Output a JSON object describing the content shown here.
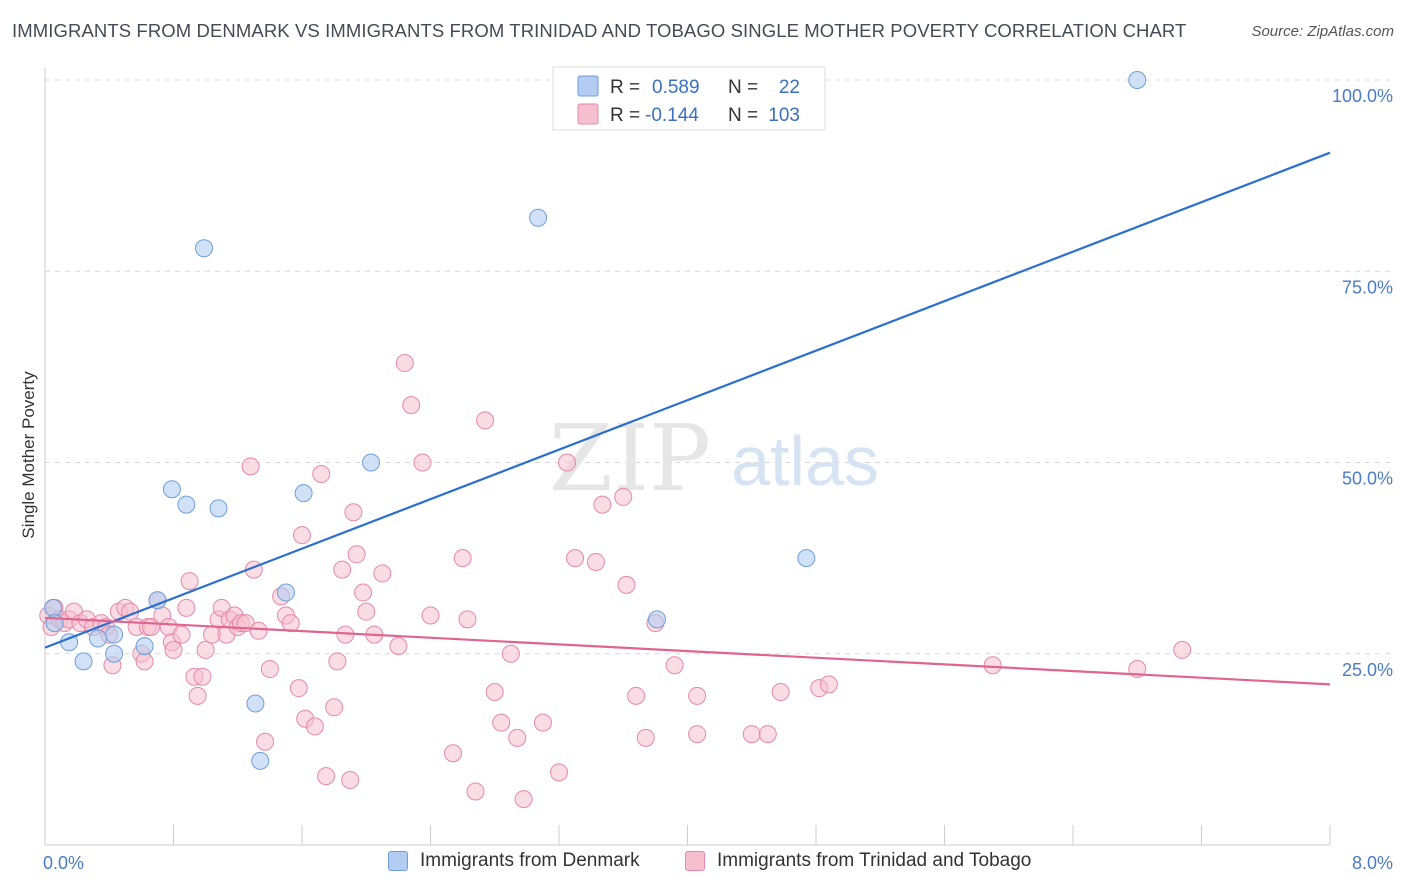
{
  "header": {
    "title": "IMMIGRANTS FROM DENMARK VS IMMIGRANTS FROM TRINIDAD AND TOBAGO SINGLE MOTHER POVERTY CORRELATION CHART",
    "source": "Source: ZipAtlas.com"
  },
  "watermark": {
    "zip": "ZIP",
    "atlas": "atlas"
  },
  "colors": {
    "blue_fill": "#b3cdf2",
    "blue_stroke": "#6f9fd8",
    "blue_line": "#2a6fce",
    "pink_fill": "#f6bfd0",
    "pink_stroke": "#e48aa8",
    "pink_line": "#e0648e",
    "axis_text_blue": "#4a7cc7",
    "grid": "#d9d9d9"
  },
  "stats_legend": {
    "rows": [
      {
        "r_label": "R =",
        "r_value": "0.589",
        "n_label": "N =",
        "n_value": "22",
        "series": "blue"
      },
      {
        "r_label": "R =",
        "r_value": "-0.144",
        "n_label": "N =",
        "n_value": "103",
        "series": "pink"
      }
    ]
  },
  "bottom_legend": {
    "items": [
      {
        "label": "Immigrants from Denmark",
        "series": "blue"
      },
      {
        "label": "Immigrants from Trinidad and Tobago",
        "series": "pink"
      }
    ]
  },
  "chart_data": {
    "type": "scatter",
    "title": "IMMIGRANTS FROM DENMARK VS IMMIGRANTS FROM TRINIDAD AND TOBAGO SINGLE MOTHER POVERTY CORRELATION CHART",
    "xlabel": "",
    "ylabel": "Single Mother Poverty",
    "xlim": [
      0,
      8
    ],
    "ylim": [
      0,
      100
    ],
    "x_tick_labels": [
      "0.0%",
      "8.0%"
    ],
    "y_tick_labels": [
      "25.0%",
      "50.0%",
      "75.0%",
      "100.0%"
    ],
    "y_ticks": [
      25,
      50,
      75,
      100
    ],
    "grid": true,
    "legend_position": "top-center",
    "series": [
      {
        "name": "Immigrants from Denmark",
        "color": "#6f9fd8",
        "points": [
          [
            0.05,
            31
          ],
          [
            0.06,
            29
          ],
          [
            0.15,
            26.5
          ],
          [
            0.24,
            24
          ],
          [
            0.33,
            27
          ],
          [
            0.43,
            27.5
          ],
          [
            0.43,
            25
          ],
          [
            0.62,
            26
          ],
          [
            0.7,
            32
          ],
          [
            0.79,
            46.5
          ],
          [
            0.88,
            44.5
          ],
          [
            0.99,
            78
          ],
          [
            1.08,
            44
          ],
          [
            1.31,
            18.5
          ],
          [
            1.34,
            11
          ],
          [
            1.5,
            33
          ],
          [
            1.61,
            46
          ],
          [
            2.03,
            50
          ],
          [
            3.07,
            82
          ],
          [
            3.81,
            29.5
          ],
          [
            4.74,
            37.5
          ],
          [
            6.8,
            100
          ]
        ],
        "trendline": {
          "x": [
            0,
            8
          ],
          "y": [
            25.8,
            90.5
          ]
        }
      },
      {
        "name": "Immigrants from Trinidad and Tobago",
        "color": "#e48aa8",
        "points": [
          [
            0.02,
            30
          ],
          [
            0.04,
            28.5
          ],
          [
            0.06,
            31
          ],
          [
            0.09,
            29.5
          ],
          [
            0.12,
            29
          ],
          [
            0.15,
            29.5
          ],
          [
            0.18,
            30.5
          ],
          [
            0.22,
            29
          ],
          [
            0.26,
            29.5
          ],
          [
            0.3,
            28.5
          ],
          [
            0.35,
            29
          ],
          [
            0.38,
            28.5
          ],
          [
            0.4,
            27.5
          ],
          [
            0.42,
            23.5
          ],
          [
            0.46,
            30.5
          ],
          [
            0.5,
            31
          ],
          [
            0.53,
            30.5
          ],
          [
            0.57,
            28.5
          ],
          [
            0.6,
            25
          ],
          [
            0.62,
            24
          ],
          [
            0.64,
            28.5
          ],
          [
            0.66,
            28.5
          ],
          [
            0.7,
            32
          ],
          [
            0.73,
            30
          ],
          [
            0.77,
            28.5
          ],
          [
            0.79,
            26.5
          ],
          [
            0.8,
            25.5
          ],
          [
            0.85,
            27.5
          ],
          [
            0.88,
            31
          ],
          [
            0.9,
            34.5
          ],
          [
            0.93,
            22
          ],
          [
            0.95,
            19.5
          ],
          [
            0.98,
            22
          ],
          [
            1.0,
            25.5
          ],
          [
            1.04,
            27.5
          ],
          [
            1.08,
            29.5
          ],
          [
            1.1,
            31
          ],
          [
            1.13,
            27.5
          ],
          [
            1.15,
            29.5
          ],
          [
            1.18,
            30
          ],
          [
            1.2,
            28.5
          ],
          [
            1.22,
            29
          ],
          [
            1.25,
            29
          ],
          [
            1.28,
            49.5
          ],
          [
            1.3,
            36
          ],
          [
            1.33,
            28
          ],
          [
            1.37,
            13.5
          ],
          [
            1.4,
            23
          ],
          [
            1.47,
            32.5
          ],
          [
            1.5,
            30
          ],
          [
            1.53,
            29
          ],
          [
            1.58,
            20.5
          ],
          [
            1.6,
            40.5
          ],
          [
            1.62,
            16.5
          ],
          [
            1.68,
            15.5
          ],
          [
            1.72,
            48.5
          ],
          [
            1.75,
            9
          ],
          [
            1.8,
            18
          ],
          [
            1.82,
            24
          ],
          [
            1.85,
            36
          ],
          [
            1.87,
            27.5
          ],
          [
            1.9,
            8.5
          ],
          [
            1.92,
            43.5
          ],
          [
            1.94,
            38
          ],
          [
            1.98,
            33
          ],
          [
            2.0,
            30.5
          ],
          [
            2.05,
            27.5
          ],
          [
            2.1,
            35.5
          ],
          [
            2.2,
            26
          ],
          [
            2.24,
            63
          ],
          [
            2.28,
            57.5
          ],
          [
            2.35,
            50
          ],
          [
            2.4,
            30
          ],
          [
            2.54,
            12
          ],
          [
            2.6,
            37.5
          ],
          [
            2.63,
            29.5
          ],
          [
            2.68,
            7
          ],
          [
            2.74,
            55.5
          ],
          [
            2.8,
            20
          ],
          [
            2.84,
            16
          ],
          [
            2.9,
            25
          ],
          [
            2.94,
            14
          ],
          [
            2.98,
            6
          ],
          [
            3.1,
            16
          ],
          [
            3.2,
            9.5
          ],
          [
            3.25,
            50
          ],
          [
            3.3,
            37.5
          ],
          [
            3.43,
            37
          ],
          [
            3.47,
            44.5
          ],
          [
            3.6,
            45.5
          ],
          [
            3.62,
            34
          ],
          [
            3.68,
            19.5
          ],
          [
            3.74,
            14
          ],
          [
            3.8,
            29
          ],
          [
            3.92,
            23.5
          ],
          [
            4.06,
            19.5
          ],
          [
            4.06,
            14.5
          ],
          [
            4.4,
            14.5
          ],
          [
            4.5,
            14.5
          ],
          [
            4.58,
            20
          ],
          [
            4.82,
            20.5
          ],
          [
            4.88,
            21
          ],
          [
            5.9,
            23.5
          ],
          [
            6.8,
            23
          ],
          [
            7.08,
            25.5
          ]
        ],
        "trendline": {
          "x": [
            0,
            8
          ],
          "y": [
            29.7,
            21
          ]
        }
      }
    ]
  }
}
